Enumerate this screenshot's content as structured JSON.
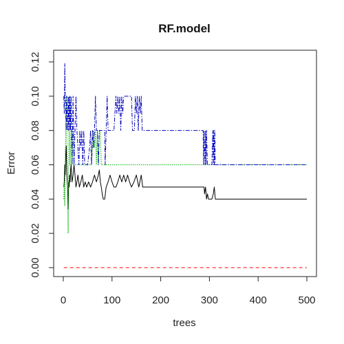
{
  "chart_data": {
    "type": "line",
    "title": "RF.model",
    "xlabel": "trees",
    "ylabel": "Error",
    "xlim": [
      0,
      500
    ],
    "ylim": [
      0,
      0.12
    ],
    "x_ticks": [
      "0",
      "100",
      "200",
      "300",
      "400",
      "500"
    ],
    "y_ticks": [
      "0.00",
      "0.02",
      "0.04",
      "0.06",
      "0.08",
      "0.10",
      "0.12"
    ],
    "grid": false,
    "legend": "none",
    "series": [
      {
        "color": "#000000",
        "dash": "solid",
        "points": [
          [
            1,
            0.047
          ],
          [
            2,
            0.05
          ],
          [
            3,
            0.06
          ],
          [
            4,
            0.054
          ],
          [
            5,
            0.066
          ],
          [
            6,
            0.071
          ],
          [
            7,
            0.057
          ],
          [
            8,
            0.05
          ],
          [
            9,
            0.045
          ],
          [
            10,
            0.034
          ],
          [
            11,
            0.05
          ],
          [
            12,
            0.047
          ],
          [
            13,
            0.054
          ],
          [
            14,
            0.05
          ],
          [
            15,
            0.057
          ],
          [
            16,
            0.06
          ],
          [
            17,
            0.054
          ],
          [
            18,
            0.05
          ],
          [
            20,
            0.054
          ],
          [
            22,
            0.06
          ],
          [
            24,
            0.054
          ],
          [
            26,
            0.047
          ],
          [
            28,
            0.05
          ],
          [
            30,
            0.054
          ],
          [
            33,
            0.047
          ],
          [
            36,
            0.05
          ],
          [
            39,
            0.054
          ],
          [
            42,
            0.047
          ],
          [
            45,
            0.05
          ],
          [
            48,
            0.047
          ],
          [
            52,
            0.05
          ],
          [
            56,
            0.047
          ],
          [
            60,
            0.05
          ],
          [
            64,
            0.054
          ],
          [
            68,
            0.05
          ],
          [
            72,
            0.054
          ],
          [
            74,
            0.057
          ],
          [
            76,
            0.05
          ],
          [
            78,
            0.047
          ],
          [
            80,
            0.043
          ],
          [
            82,
            0.04
          ],
          [
            85,
            0.04
          ],
          [
            88,
            0.047
          ],
          [
            92,
            0.05
          ],
          [
            96,
            0.054
          ],
          [
            100,
            0.05
          ],
          [
            104,
            0.047
          ],
          [
            108,
            0.047
          ],
          [
            112,
            0.05
          ],
          [
            116,
            0.054
          ],
          [
            120,
            0.05
          ],
          [
            124,
            0.054
          ],
          [
            128,
            0.05
          ],
          [
            132,
            0.054
          ],
          [
            136,
            0.05
          ],
          [
            140,
            0.047
          ],
          [
            145,
            0.05
          ],
          [
            150,
            0.054
          ],
          [
            155,
            0.047
          ],
          [
            160,
            0.054
          ],
          [
            163,
            0.047
          ],
          [
            168,
            0.047
          ],
          [
            200,
            0.047
          ],
          [
            250,
            0.047
          ],
          [
            289,
            0.047
          ],
          [
            290,
            0.043
          ],
          [
            292,
            0.047
          ],
          [
            294,
            0.04
          ],
          [
            296,
            0.043
          ],
          [
            298,
            0.04
          ],
          [
            305,
            0.04
          ],
          [
            308,
            0.043
          ],
          [
            310,
            0.047
          ],
          [
            312,
            0.04
          ],
          [
            350,
            0.04
          ],
          [
            400,
            0.04
          ],
          [
            450,
            0.04
          ],
          [
            500,
            0.04
          ]
        ]
      },
      {
        "color": "#ff0000",
        "dash": "dashed",
        "points": [
          [
            1,
            0
          ],
          [
            500,
            0
          ]
        ]
      },
      {
        "color": "#00aa00",
        "dash": "dotted",
        "points": [
          [
            1,
            0.04
          ],
          [
            2,
            0.05
          ],
          [
            3,
            0.036
          ],
          [
            4,
            0.06
          ],
          [
            5,
            0.08
          ],
          [
            6,
            0.1
          ],
          [
            7,
            0.08
          ],
          [
            8,
            0.06
          ],
          [
            9,
            0.04
          ],
          [
            10,
            0.02
          ],
          [
            11,
            0.06
          ],
          [
            12,
            0.08
          ],
          [
            14,
            0.06
          ],
          [
            16,
            0.08
          ],
          [
            18,
            0.06
          ],
          [
            20,
            0.08
          ],
          [
            22,
            0.06
          ],
          [
            24,
            0.06
          ],
          [
            30,
            0.06
          ],
          [
            40,
            0.06
          ],
          [
            50,
            0.06
          ],
          [
            58,
            0.06
          ],
          [
            60,
            0.07
          ],
          [
            62,
            0.08
          ],
          [
            64,
            0.07
          ],
          [
            66,
            0.08
          ],
          [
            68,
            0.06
          ],
          [
            70,
            0.08
          ],
          [
            72,
            0.06
          ],
          [
            74,
            0.08
          ],
          [
            76,
            0.08
          ],
          [
            78,
            0.06
          ],
          [
            80,
            0.06
          ],
          [
            100,
            0.06
          ],
          [
            200,
            0.06
          ],
          [
            300,
            0.06
          ],
          [
            400,
            0.06
          ],
          [
            500,
            0.06
          ]
        ]
      },
      {
        "color": "#0000bb",
        "dash": "dashdot",
        "points": [
          [
            1,
            0.1
          ],
          [
            2,
            0.09
          ],
          [
            3,
            0.119
          ],
          [
            4,
            0.1
          ],
          [
            5,
            0.09
          ],
          [
            6,
            0.08
          ],
          [
            7,
            0.1
          ],
          [
            8,
            0.09
          ],
          [
            9,
            0.08
          ],
          [
            10,
            0.1
          ],
          [
            11,
            0.08
          ],
          [
            12,
            0.1
          ],
          [
            13,
            0.08
          ],
          [
            14,
            0.1
          ],
          [
            15,
            0.08
          ],
          [
            16,
            0.1
          ],
          [
            17,
            0.08
          ],
          [
            18,
            0.06
          ],
          [
            19,
            0.08
          ],
          [
            20,
            0.1
          ],
          [
            21,
            0.08
          ],
          [
            22,
            0.06
          ],
          [
            24,
            0.08
          ],
          [
            26,
            0.1
          ],
          [
            28,
            0.08
          ],
          [
            30,
            0.07
          ],
          [
            32,
            0.06
          ],
          [
            34,
            0.08
          ],
          [
            36,
            0.07
          ],
          [
            38,
            0.08
          ],
          [
            40,
            0.06
          ],
          [
            42,
            0.08
          ],
          [
            44,
            0.06
          ],
          [
            46,
            0.06
          ],
          [
            50,
            0.06
          ],
          [
            54,
            0.07
          ],
          [
            56,
            0.08
          ],
          [
            58,
            0.06
          ],
          [
            60,
            0.08
          ],
          [
            62,
            0.07
          ],
          [
            64,
            0.08
          ],
          [
            66,
            0.1
          ],
          [
            68,
            0.08
          ],
          [
            70,
            0.08
          ],
          [
            72,
            0.06
          ],
          [
            74,
            0.08
          ],
          [
            76,
            0.08
          ],
          [
            80,
            0.08
          ],
          [
            85,
            0.08
          ],
          [
            86,
            0.06
          ],
          [
            88,
            0.08
          ],
          [
            90,
            0.1
          ],
          [
            92,
            0.08
          ],
          [
            94,
            0.08
          ],
          [
            96,
            0.08
          ],
          [
            100,
            0.08
          ],
          [
            104,
            0.08
          ],
          [
            106,
            0.09
          ],
          [
            108,
            0.1
          ],
          [
            110,
            0.09
          ],
          [
            112,
            0.1
          ],
          [
            114,
            0.09
          ],
          [
            116,
            0.1
          ],
          [
            118,
            0.08
          ],
          [
            120,
            0.1
          ],
          [
            122,
            0.09
          ],
          [
            124,
            0.1
          ],
          [
            126,
            0.1
          ],
          [
            130,
            0.1
          ],
          [
            135,
            0.1
          ],
          [
            140,
            0.1
          ],
          [
            142,
            0.08
          ],
          [
            146,
            0.08
          ],
          [
            148,
            0.1
          ],
          [
            150,
            0.09
          ],
          [
            152,
            0.1
          ],
          [
            154,
            0.08
          ],
          [
            156,
            0.1
          ],
          [
            158,
            0.09
          ],
          [
            160,
            0.1
          ],
          [
            162,
            0.08
          ],
          [
            165,
            0.08
          ],
          [
            200,
            0.08
          ],
          [
            250,
            0.08
          ],
          [
            287,
            0.08
          ],
          [
            288,
            0.06
          ],
          [
            289,
            0.08
          ],
          [
            290,
            0.07
          ],
          [
            291,
            0.06
          ],
          [
            292,
            0.08
          ],
          [
            293,
            0.06
          ],
          [
            294,
            0.08
          ],
          [
            296,
            0.06
          ],
          [
            300,
            0.06
          ],
          [
            305,
            0.06
          ],
          [
            307,
            0.08
          ],
          [
            308,
            0.06
          ],
          [
            309,
            0.08
          ],
          [
            310,
            0.06
          ],
          [
            311,
            0.08
          ],
          [
            312,
            0.06
          ],
          [
            350,
            0.06
          ],
          [
            400,
            0.06
          ],
          [
            450,
            0.06
          ],
          [
            500,
            0.06
          ]
        ]
      }
    ]
  }
}
